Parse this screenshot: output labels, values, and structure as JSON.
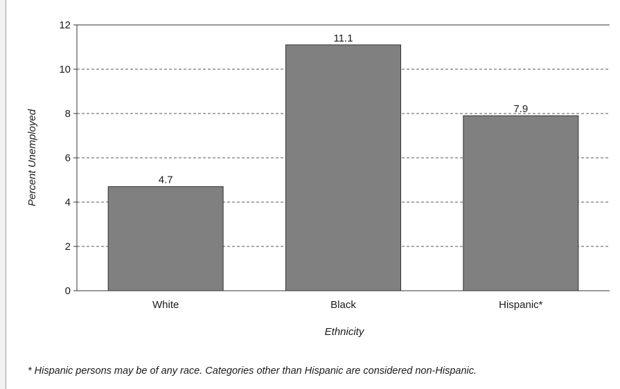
{
  "chart_data": {
    "type": "bar",
    "categories": [
      "White",
      "Black",
      "Hispanic*"
    ],
    "values": [
      4.7,
      11.1,
      7.9
    ],
    "value_labels": [
      "4.7",
      "11.1",
      "7.9"
    ],
    "title": "",
    "xlabel": "Ethnicity",
    "ylabel": "Percent Unemployed",
    "ylim": [
      0,
      12
    ],
    "yticks": [
      0,
      2,
      4,
      6,
      8,
      10,
      12
    ],
    "grid": "horizontal dashed",
    "legend": "none",
    "bar_color": "#808080",
    "bar_edge_color": "#333333"
  },
  "footnote": "* Hispanic persons may be of any race. Categories other than Hispanic are considered non-Hispanic."
}
